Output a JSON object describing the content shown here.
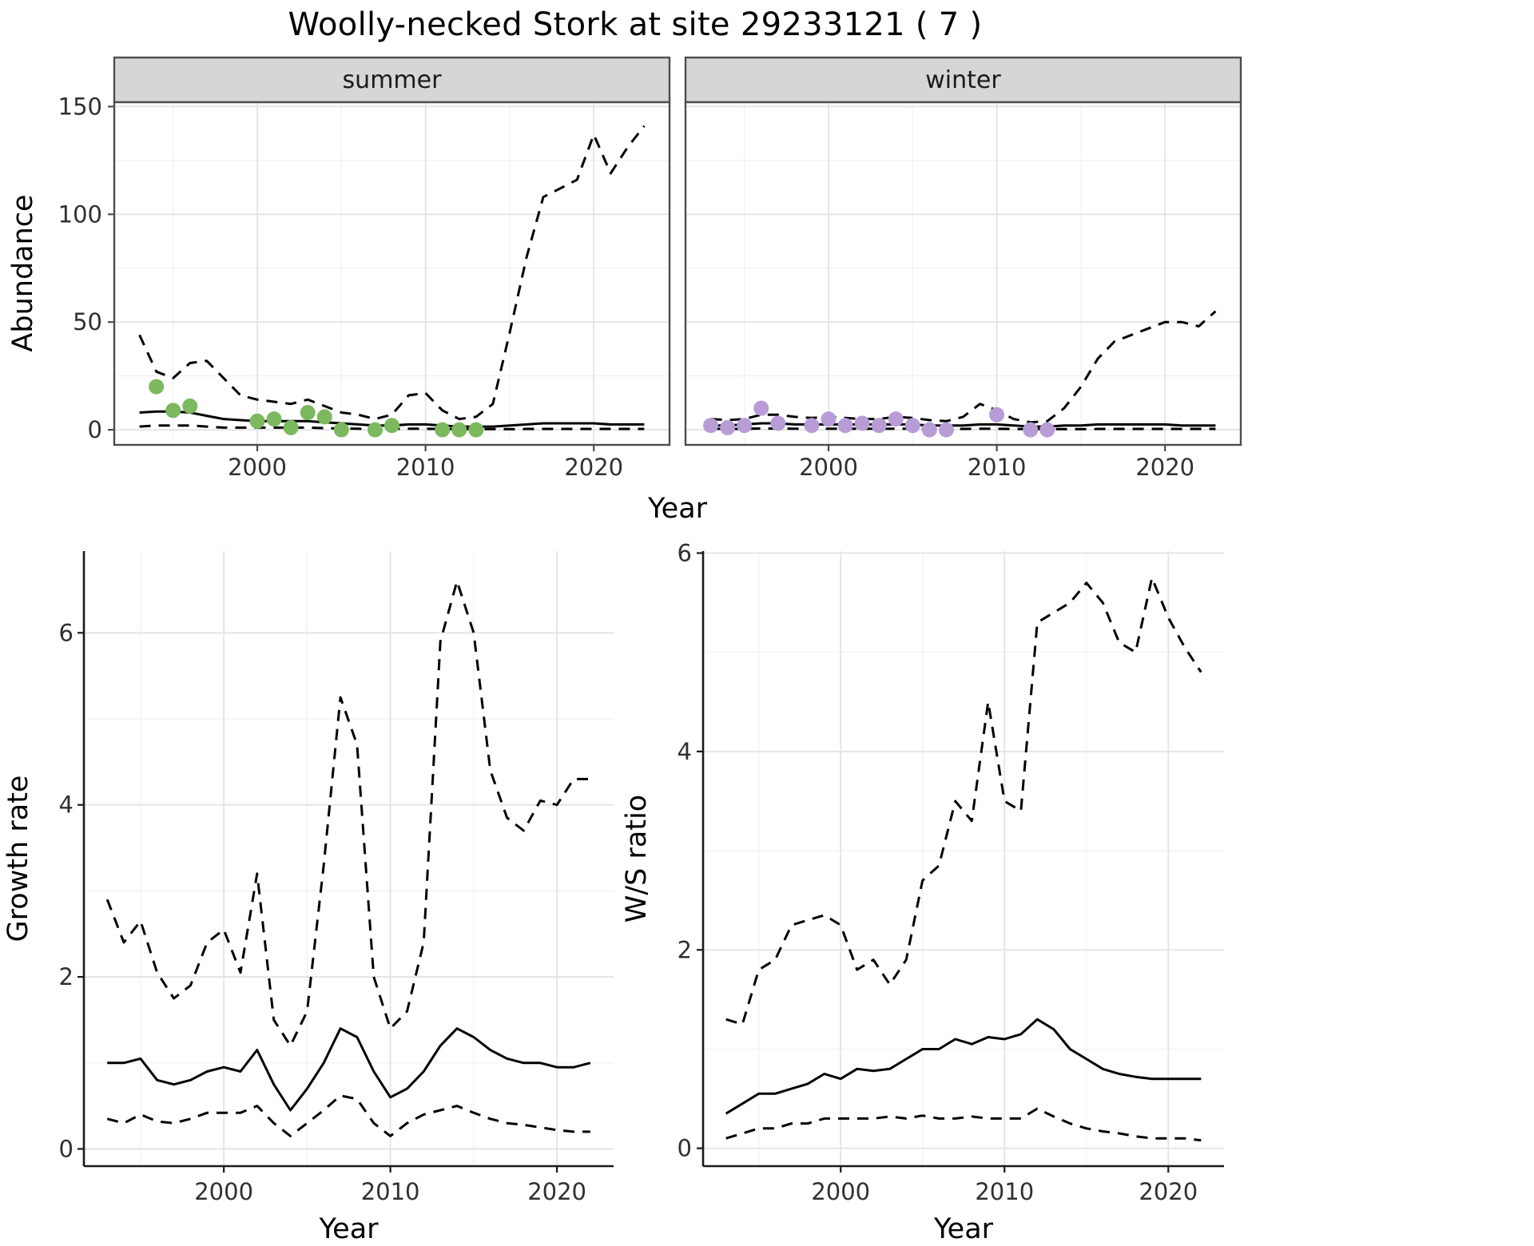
{
  "title": "Woolly-necked Stork at site 29233121 ( 7 )",
  "colors": {
    "fit_line": "#000000",
    "summer_points": "#7cb85e",
    "winter_points": "#b79cd6",
    "strip_background": "#d6d6d6",
    "strip_text": "#1a1a1a",
    "panel_border": "#4d4d4d",
    "grid_major": "#e3e3e3",
    "grid_minor": "#f1f1f1",
    "axis_text": "#303030",
    "axis_line": "#1a1a1a"
  },
  "chart_data": [
    {
      "id": "abundance-summer",
      "type": "line",
      "facet_label": "summer",
      "xlabel": "Year",
      "ylabel": "Abundance",
      "xlim": [
        1991.5,
        2024.5
      ],
      "ylim": [
        -7,
        152
      ],
      "xticks": [
        2000,
        2010,
        2020
      ],
      "yticks": [
        0,
        50,
        100,
        150
      ],
      "grid": true,
      "legend": "none",
      "x": [
        1993,
        1994,
        1995,
        1996,
        1997,
        1998,
        1999,
        2000,
        2001,
        2002,
        2003,
        2004,
        2005,
        2006,
        2007,
        2008,
        2009,
        2010,
        2011,
        2012,
        2013,
        2014,
        2015,
        2016,
        2017,
        2018,
        2019,
        2020,
        2021,
        2022,
        2023
      ],
      "series": [
        {
          "name": "estimate",
          "linestyle": "solid",
          "values": [
            8,
            8.5,
            8.5,
            8,
            6.5,
            5,
            4.5,
            4,
            4,
            4,
            4,
            3.5,
            3,
            2.5,
            2,
            2,
            2.5,
            2.5,
            2,
            1.5,
            1.5,
            1.5,
            2,
            2.5,
            3,
            3,
            3,
            3,
            2.5,
            2.5,
            2.5
          ]
        },
        {
          "name": "upper-ci",
          "linestyle": "dashed",
          "values": [
            44,
            27,
            24,
            31,
            32,
            24,
            16,
            14,
            13,
            12,
            14,
            11,
            8,
            7,
            5,
            7,
            16,
            17,
            9,
            5,
            6,
            12,
            45,
            80,
            108,
            112,
            116,
            137,
            119,
            131,
            141
          ]
        },
        {
          "name": "lower-ci",
          "linestyle": "dashed",
          "values": [
            1.5,
            2,
            2,
            2,
            1.5,
            1,
            1,
            1,
            1,
            1,
            1,
            0.8,
            0.6,
            0.5,
            0.4,
            0.4,
            0.5,
            0.5,
            0.4,
            0.3,
            0.3,
            0.3,
            0.3,
            0.4,
            0.4,
            0.4,
            0.4,
            0.4,
            0.4,
            0.4,
            0.4
          ]
        }
      ],
      "points": {
        "name": "observed-counts",
        "color": "#7cb85e",
        "x": [
          1994,
          1995,
          1996,
          2000,
          2001,
          2002,
          2003,
          2004,
          2005,
          2007,
          2008,
          2011,
          2012,
          2013
        ],
        "y": [
          20,
          9,
          11,
          4,
          5,
          1,
          8,
          6,
          0,
          0,
          2,
          0,
          0,
          0
        ]
      }
    },
    {
      "id": "abundance-winter",
      "type": "line",
      "facet_label": "winter",
      "xlabel": "Year",
      "ylabel": "Abundance",
      "xlim": [
        1991.5,
        2024.5
      ],
      "ylim": [
        -7,
        152
      ],
      "xticks": [
        2000,
        2010,
        2020
      ],
      "yticks": [
        0,
        50,
        100,
        150
      ],
      "grid": true,
      "legend": "none",
      "x": [
        1993,
        1994,
        1995,
        1996,
        1997,
        1998,
        1999,
        2000,
        2001,
        2002,
        2003,
        2004,
        2005,
        2006,
        2007,
        2008,
        2009,
        2010,
        2011,
        2012,
        2013,
        2014,
        2015,
        2016,
        2017,
        2018,
        2019,
        2020,
        2021,
        2022,
        2023
      ],
      "series": [
        {
          "name": "estimate",
          "linestyle": "solid",
          "values": [
            2,
            2,
            2.5,
            3,
            3,
            2.5,
            2.5,
            2.5,
            2.5,
            2.5,
            2.5,
            2.5,
            2.5,
            2,
            2,
            2,
            2.5,
            2.5,
            2,
            1.5,
            1.5,
            2,
            2,
            2.5,
            2.5,
            2.5,
            2.5,
            2.5,
            2,
            2,
            2
          ]
        },
        {
          "name": "upper-ci",
          "linestyle": "dashed",
          "values": [
            5,
            4.5,
            5,
            7,
            7,
            6,
            5.5,
            6,
            5.5,
            5,
            5,
            6,
            5.5,
            4.5,
            4,
            6,
            12,
            9,
            5,
            3.5,
            4,
            10,
            20,
            33,
            41,
            44,
            47,
            50,
            50,
            48,
            55
          ]
        },
        {
          "name": "lower-ci",
          "linestyle": "dashed",
          "values": [
            0.5,
            0.4,
            0.5,
            0.6,
            0.6,
            0.5,
            0.5,
            0.5,
            0.5,
            0.5,
            0.5,
            0.5,
            0.5,
            0.4,
            0.4,
            0.4,
            0.5,
            0.5,
            0.4,
            0.3,
            0.3,
            0.3,
            0.3,
            0.4,
            0.4,
            0.4,
            0.4,
            0.4,
            0.4,
            0.4,
            0.4
          ]
        }
      ],
      "points": {
        "name": "observed-counts",
        "color": "#b79cd6",
        "x": [
          1993,
          1994,
          1995,
          1996,
          1997,
          1999,
          2000,
          2001,
          2002,
          2003,
          2004,
          2005,
          2006,
          2007,
          2010,
          2012,
          2013
        ],
        "y": [
          2,
          1,
          2,
          10,
          3,
          2,
          5,
          2,
          3,
          2,
          5,
          2,
          0,
          0,
          7,
          0,
          0
        ]
      }
    },
    {
      "id": "growth-rate",
      "type": "line",
      "xlabel": "Year",
      "ylabel": "Growth rate",
      "xlim": [
        1991.6,
        2023.4
      ],
      "ylim": [
        -0.2,
        6.95
      ],
      "xticks": [
        2000,
        2010,
        2020
      ],
      "yticks": [
        0,
        2,
        4,
        6
      ],
      "grid": true,
      "legend": "none",
      "x": [
        1993,
        1994,
        1995,
        1996,
        1997,
        1998,
        1999,
        2000,
        2001,
        2002,
        2003,
        2004,
        2005,
        2006,
        2007,
        2008,
        2009,
        2010,
        2011,
        2012,
        2013,
        2014,
        2015,
        2016,
        2017,
        2018,
        2019,
        2020,
        2021,
        2022
      ],
      "series": [
        {
          "name": "estimate",
          "linestyle": "solid",
          "values": [
            1.0,
            1.0,
            1.05,
            0.8,
            0.75,
            0.8,
            0.9,
            0.95,
            0.9,
            1.15,
            0.75,
            0.45,
            0.7,
            1.0,
            1.4,
            1.3,
            0.9,
            0.6,
            0.7,
            0.9,
            1.2,
            1.4,
            1.3,
            1.15,
            1.05,
            1.0,
            1.0,
            0.95,
            0.95,
            1.0
          ]
        },
        {
          "name": "upper-ci",
          "linestyle": "dashed",
          "values": [
            2.9,
            2.4,
            2.65,
            2.05,
            1.75,
            1.9,
            2.4,
            2.55,
            2.05,
            3.2,
            1.5,
            1.2,
            1.6,
            3.3,
            5.25,
            4.7,
            2.0,
            1.4,
            1.6,
            2.4,
            5.9,
            6.6,
            6.0,
            4.4,
            3.85,
            3.7,
            4.05,
            4.0,
            4.3,
            4.3
          ]
        },
        {
          "name": "lower-ci",
          "linestyle": "dashed",
          "values": [
            0.35,
            0.3,
            0.4,
            0.32,
            0.3,
            0.35,
            0.42,
            0.42,
            0.42,
            0.5,
            0.3,
            0.15,
            0.3,
            0.45,
            0.62,
            0.58,
            0.3,
            0.15,
            0.3,
            0.4,
            0.45,
            0.5,
            0.42,
            0.35,
            0.3,
            0.28,
            0.25,
            0.22,
            0.2,
            0.2
          ]
        }
      ]
    },
    {
      "id": "ws-ratio",
      "type": "line",
      "xlabel": "Year",
      "ylabel": "W/S ratio",
      "xlim": [
        1991.6,
        2023.4
      ],
      "ylim": [
        -0.18,
        6.02
      ],
      "xticks": [
        2000,
        2010,
        2020
      ],
      "yticks": [
        0,
        2,
        4,
        6
      ],
      "grid": true,
      "legend": "none",
      "x": [
        1993,
        1994,
        1995,
        1996,
        1997,
        1998,
        1999,
        2000,
        2001,
        2002,
        2003,
        2004,
        2005,
        2006,
        2007,
        2008,
        2009,
        2010,
        2011,
        2012,
        2013,
        2014,
        2015,
        2016,
        2017,
        2018,
        2019,
        2020,
        2021,
        2022
      ],
      "series": [
        {
          "name": "estimate",
          "linestyle": "solid",
          "values": [
            0.35,
            0.45,
            0.55,
            0.55,
            0.6,
            0.65,
            0.75,
            0.7,
            0.8,
            0.78,
            0.8,
            0.9,
            1.0,
            1.0,
            1.1,
            1.05,
            1.12,
            1.1,
            1.15,
            1.3,
            1.2,
            1.0,
            0.9,
            0.8,
            0.75,
            0.72,
            0.7,
            0.7,
            0.7,
            0.7
          ]
        },
        {
          "name": "upper-ci",
          "linestyle": "dashed",
          "values": [
            1.3,
            1.25,
            1.8,
            1.9,
            2.25,
            2.3,
            2.35,
            2.25,
            1.8,
            1.9,
            1.65,
            1.9,
            2.7,
            2.85,
            3.5,
            3.3,
            4.5,
            3.5,
            3.4,
            5.3,
            5.4,
            5.5,
            5.7,
            5.5,
            5.1,
            5.0,
            5.75,
            5.35,
            5.05,
            4.8
          ]
        },
        {
          "name": "lower-ci",
          "linestyle": "dashed",
          "values": [
            0.1,
            0.15,
            0.2,
            0.2,
            0.25,
            0.25,
            0.3,
            0.3,
            0.3,
            0.3,
            0.32,
            0.3,
            0.33,
            0.3,
            0.3,
            0.32,
            0.3,
            0.3,
            0.3,
            0.4,
            0.32,
            0.25,
            0.2,
            0.17,
            0.15,
            0.12,
            0.1,
            0.1,
            0.1,
            0.08
          ]
        }
      ]
    }
  ]
}
